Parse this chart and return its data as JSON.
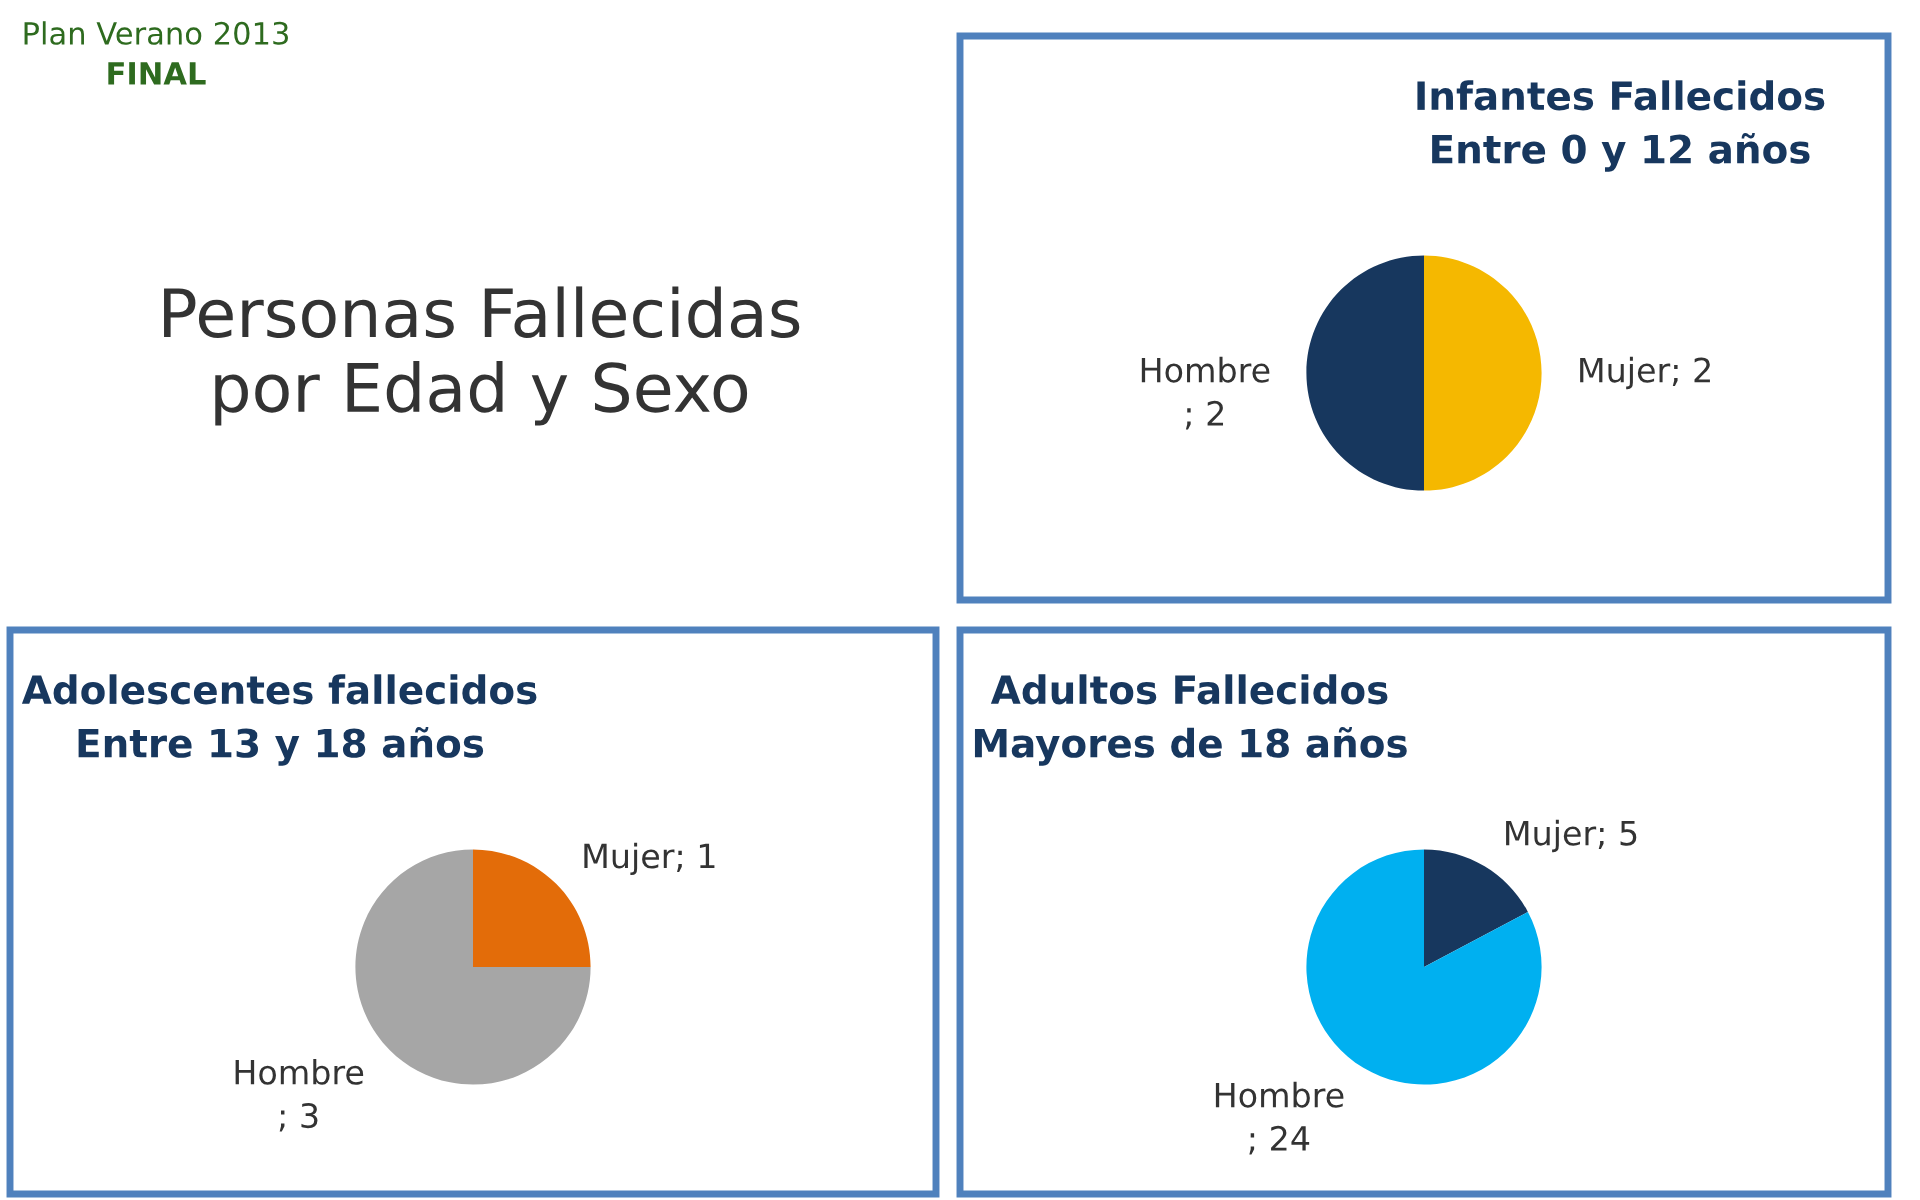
{
  "chart_data": [
    {
      "type": "other",
      "title": "Personas Fallecidas\npor Edad y Sexo",
      "annotations": [
        "Plan Verano 2013",
        "FINAL"
      ]
    },
    {
      "type": "pie",
      "title": "Infantes Fallecidos\nEntre 0 y 12 años",
      "categories": [
        "Mujer",
        "Hombre"
      ],
      "values": [
        2,
        2
      ],
      "colors": [
        "#f5b800",
        "#17375e"
      ],
      "value_labels": [
        "; 2",
        "; 2"
      ]
    },
    {
      "type": "pie",
      "title": "Adolescentes fallecidos\nEntre 13 y 18 años",
      "categories": [
        "Mujer",
        "Hombre"
      ],
      "values": [
        1,
        3
      ],
      "colors": [
        "#e36c09",
        "#a6a6a6"
      ],
      "value_labels": [
        "; 1",
        "; 3"
      ]
    },
    {
      "type": "pie",
      "title": "Adultos Fallecidos\nMayores de 18 años",
      "categories": [
        "Mujer",
        "Hombre"
      ],
      "values": [
        5,
        24
      ],
      "colors": [
        "#17375e",
        "#00b0f0"
      ],
      "value_labels": [
        "; 5",
        "; 24"
      ]
    }
  ]
}
